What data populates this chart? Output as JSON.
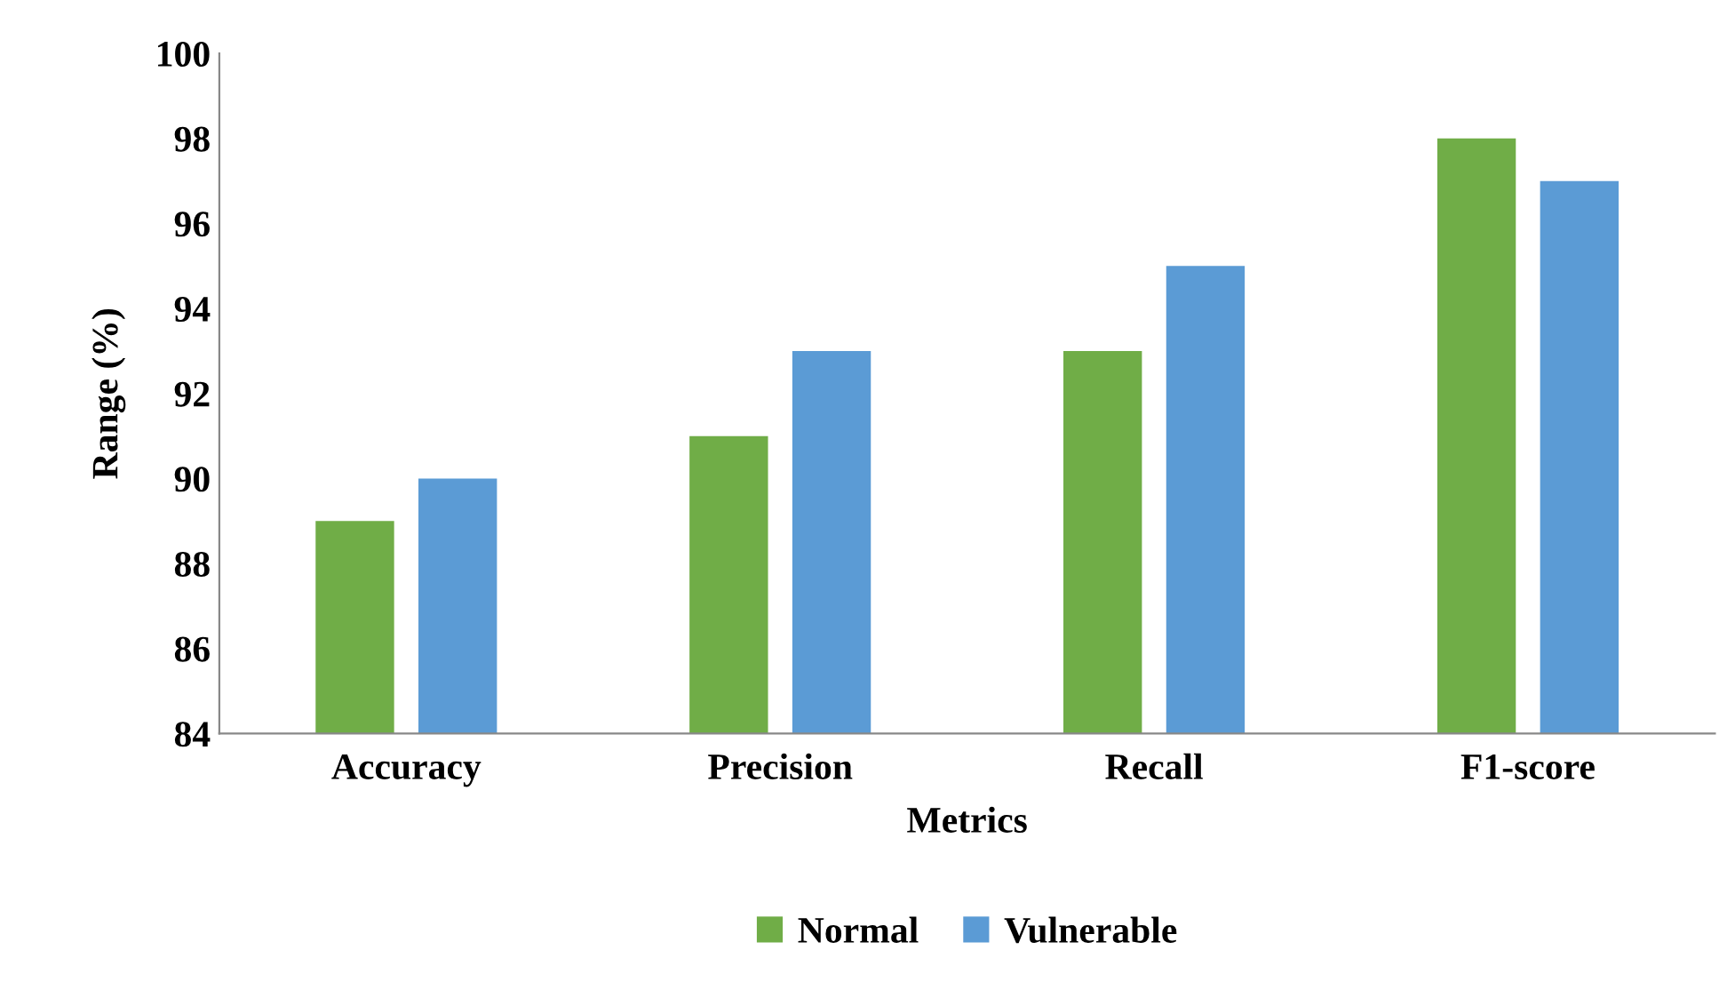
{
  "chart_data": {
    "type": "bar",
    "xlabel": "Metrics",
    "ylabel": "Range (%)",
    "categories": [
      "Accuracy",
      "Precision",
      "Recall",
      "F1-score"
    ],
    "series": [
      {
        "name": "Normal",
        "color": "#70ad47",
        "values": [
          89,
          91,
          93,
          98
        ]
      },
      {
        "name": "Vulnerable",
        "color": "#5b9bd5",
        "values": [
          90,
          93,
          95,
          97
        ]
      }
    ],
    "ylim": [
      84,
      100
    ],
    "yticks": [
      84,
      86,
      88,
      90,
      92,
      94,
      96,
      98,
      100
    ],
    "grid": false,
    "legend": "bottom"
  }
}
